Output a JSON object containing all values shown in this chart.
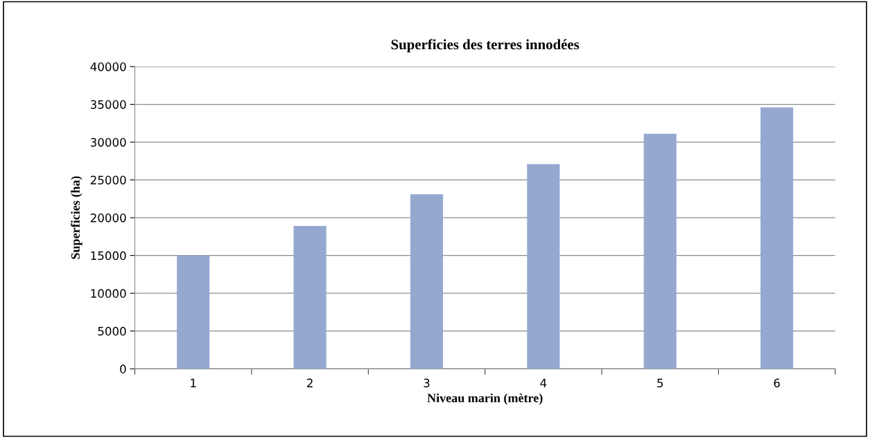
{
  "chart_data": {
    "type": "bar",
    "title": "Superficies des terres innodées",
    "xlabel": "Niveau marin (mètre)",
    "ylabel": "Superficies (ha)",
    "categories": [
      "1",
      "2",
      "3",
      "4",
      "5",
      "6"
    ],
    "values": [
      15000,
      18900,
      23100,
      27100,
      31100,
      34600
    ],
    "color": "#95a9d0",
    "ylim": [
      0,
      40000
    ],
    "yticks": [
      0,
      5000,
      10000,
      15000,
      20000,
      25000,
      30000,
      35000,
      40000
    ],
    "grid": "y",
    "legend": false
  }
}
